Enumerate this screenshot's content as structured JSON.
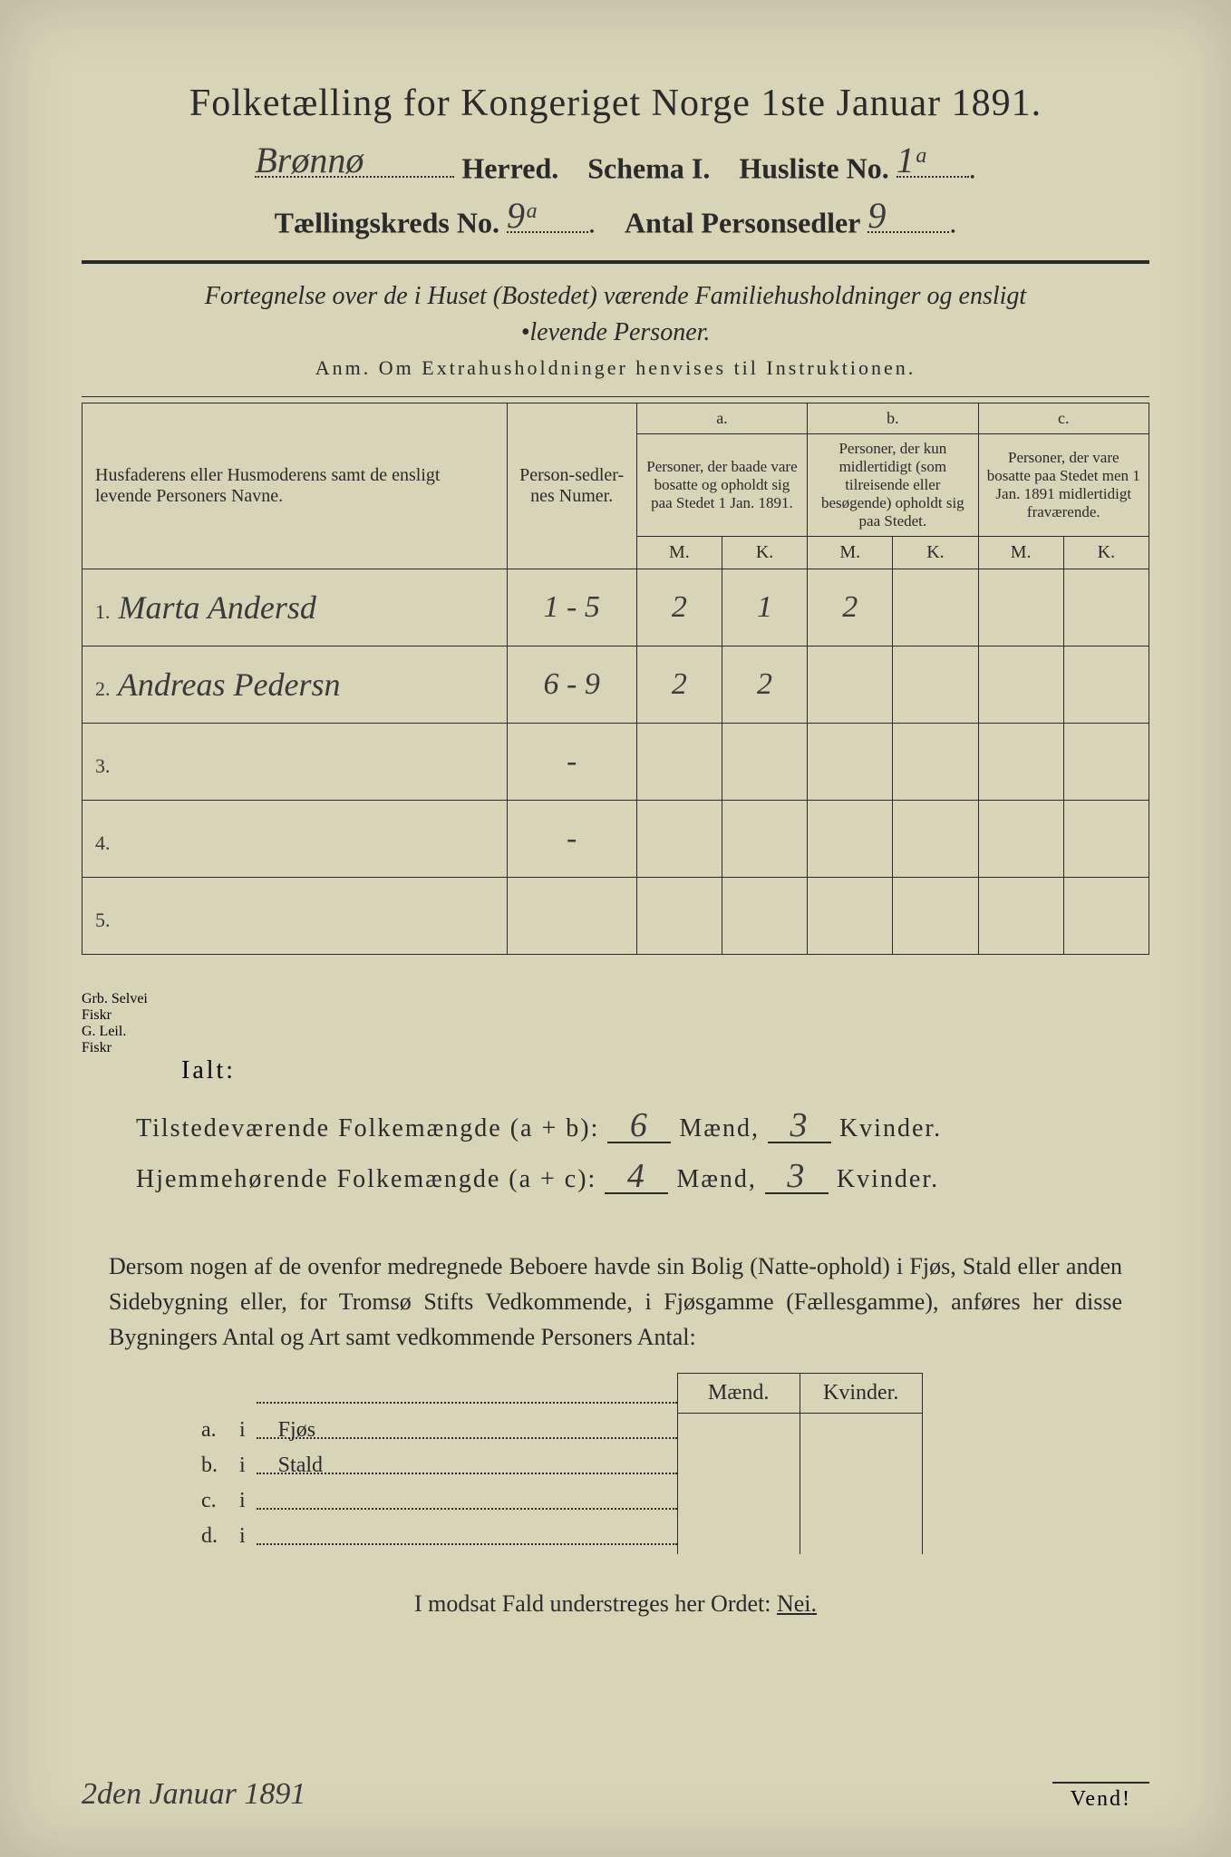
{
  "header": {
    "title": "Folketælling for Kongeriget Norge 1ste Januar 1891.",
    "herred_hand": "Brønnø",
    "herred_label": "Herred.",
    "schema_label": "Schema I.",
    "husliste_label": "Husliste No.",
    "husliste_hand": "1ᵃ",
    "kreds_label": "Tællingskreds No.",
    "kreds_hand": "9ᵃ",
    "antal_label": "Antal Personsedler",
    "antal_hand": "9"
  },
  "subtitle": {
    "line1": "Fortegnelse over de i Huset (Bostedet) værende Familiehusholdninger og ensligt",
    "line2": "•levende Personer.",
    "anm": "Anm.  Om Extrahusholdninger henvises til Instruktionen."
  },
  "table": {
    "col_name": "Husfaderens eller Husmoderens samt de ensligt levende Personers Navne.",
    "col_num": "Person-sedler-nes Numer.",
    "col_a": "Personer, der baade vare bosatte og opholdt sig paa Stedet 1 Jan. 1891.",
    "col_b": "Personer, der kun midlertidigt (som tilreisende eller besøgende) opholdt sig paa Stedet.",
    "col_c": "Personer, der vare bosatte paa Stedet men 1 Jan. 1891 midlertidigt fraværende.",
    "M": "M.",
    "K": "K.",
    "a": "a.",
    "b": "b.",
    "c": "c.",
    "rows": [
      {
        "n": "1.",
        "name": "Marta Andersd",
        "num": "1 - 5",
        "aM": "2",
        "aK": "1",
        "bM": "2",
        "bK": "",
        "cM": "",
        "cK": "",
        "note": "Grb. Selvei\nFiskr"
      },
      {
        "n": "2.",
        "name": "Andreas Pedersn",
        "num": "6 - 9",
        "aM": "2",
        "aK": "2",
        "bM": "",
        "bK": "",
        "cM": "",
        "cK": "",
        "note": "G. Leil.\nFiskr"
      },
      {
        "n": "3.",
        "name": "",
        "num": "-",
        "aM": "",
        "aK": "",
        "bM": "",
        "bK": "",
        "cM": "",
        "cK": "",
        "note": ""
      },
      {
        "n": "4.",
        "name": "",
        "num": "-",
        "aM": "",
        "aK": "",
        "bM": "",
        "bK": "",
        "cM": "",
        "cK": "",
        "note": ""
      },
      {
        "n": "5.",
        "name": "",
        "num": "",
        "aM": "",
        "aK": "",
        "bM": "",
        "bK": "",
        "cM": "",
        "cK": "",
        "note": ""
      }
    ]
  },
  "totals": {
    "ialt": "Ialt:",
    "line1_label": "Tilstedeværende Folkemængde (a + b):",
    "line1_m": "6",
    "line1_k": "3",
    "line2_label": "Hjemmehørende Folkemængde (a + c):",
    "line2_m": "4",
    "line2_k": "3",
    "maend": "Mænd,",
    "kvinder": "Kvinder."
  },
  "para": "Dersom nogen af de ovenfor medregnede Beboere havde sin Bolig (Natte-ophold) i Fjøs, Stald eller anden Sidebygning eller, for Tromsø Stifts Vedkommende, i Fjøsgamme (Fællesgamme), anføres her disse Bygningers Antal og Art samt vedkommende Personers Antal:",
  "side": {
    "maend": "Mænd.",
    "kvinder": "Kvinder.",
    "rows": [
      {
        "a": "a.",
        "i": "i",
        "label": "Fjøs"
      },
      {
        "a": "b.",
        "i": "i",
        "label": "Stald"
      },
      {
        "a": "c.",
        "i": "i",
        "label": ""
      },
      {
        "a": "d.",
        "i": "i",
        "label": ""
      }
    ]
  },
  "modsat": {
    "text": "I modsat Fald understreges her Ordet:",
    "nei": "Nei."
  },
  "footer": {
    "date": "2den Januar 1891",
    "vend": "Vend!"
  },
  "colors": {
    "paper": "#d8d4b8",
    "ink": "#2a2a2a",
    "hand": "#3a3a3a",
    "bg": "#1a1a1a"
  }
}
